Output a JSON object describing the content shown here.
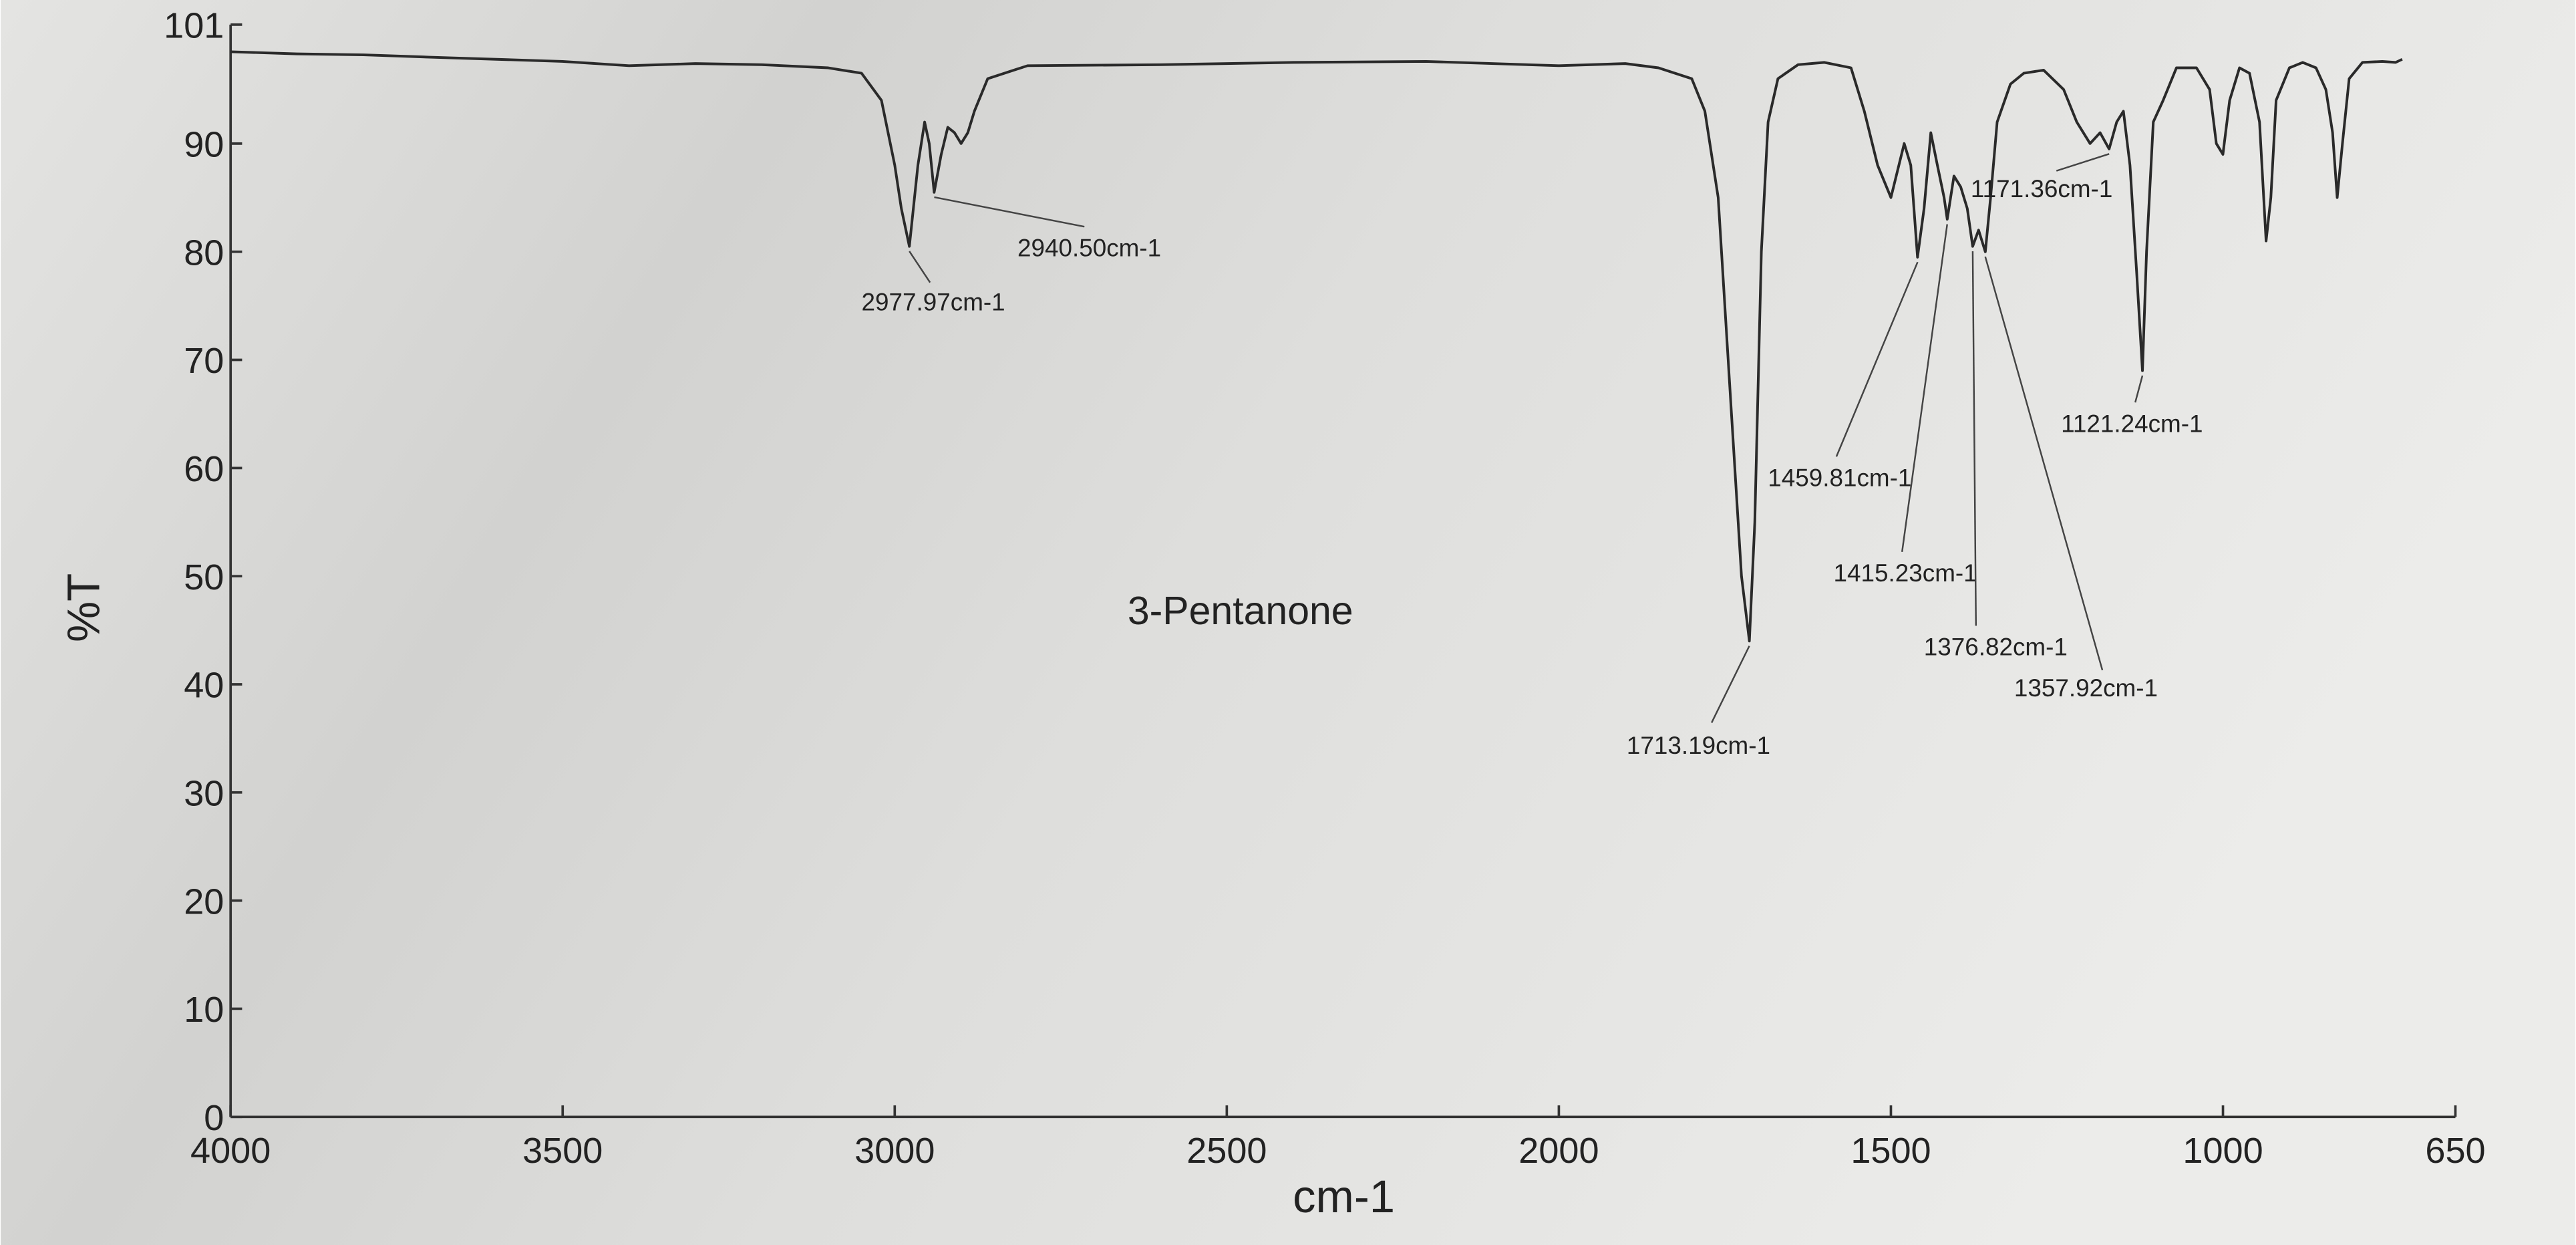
{
  "chart_data": {
    "type": "line",
    "title": "3-Pentanone",
    "xlabel": "cm-1",
    "ylabel": "%T",
    "xlim": [
      4000,
      650
    ],
    "ylim": [
      0,
      101
    ],
    "xticks": [
      4000,
      3500,
      3000,
      2500,
      2000,
      1500,
      1000,
      650
    ],
    "yticks": [
      0,
      10,
      20,
      30,
      40,
      50,
      60,
      70,
      80,
      90,
      101
    ],
    "color": "#2a2a2a",
    "x": [
      4000,
      3900,
      3800,
      3700,
      3600,
      3500,
      3400,
      3300,
      3200,
      3100,
      3050,
      3020,
      3000,
      2990,
      2977.97,
      2965,
      2955,
      2948,
      2940.5,
      2930,
      2920,
      2910,
      2900,
      2890,
      2880,
      2860,
      2800,
      2600,
      2400,
      2200,
      2000,
      1900,
      1850,
      1800,
      1780,
      1760,
      1740,
      1725,
      1713.19,
      1705,
      1695,
      1685,
      1670,
      1640,
      1600,
      1560,
      1540,
      1520,
      1500,
      1480,
      1470,
      1459.81,
      1450,
      1440,
      1430,
      1420,
      1415.23,
      1405,
      1395,
      1385,
      1376.82,
      1368,
      1357.92,
      1350,
      1340,
      1320,
      1300,
      1270,
      1240,
      1220,
      1200,
      1185,
      1171.36,
      1160,
      1150,
      1140,
      1130,
      1121.24,
      1115,
      1105,
      1090,
      1070,
      1040,
      1020,
      1010,
      1000,
      990,
      975,
      960,
      945,
      935,
      928,
      920,
      900,
      880,
      860,
      845,
      835,
      828,
      820,
      810,
      790,
      760,
      740,
      730
    ],
    "values": [
      98.5,
      98.3,
      98.2,
      98.0,
      97.8,
      97.6,
      97.2,
      97.4,
      97.3,
      97.0,
      96.5,
      94,
      88,
      84,
      80.5,
      88,
      92,
      90,
      85.5,
      89,
      91.5,
      91,
      90,
      91,
      93,
      96,
      97.2,
      97.3,
      97.5,
      97.6,
      97.2,
      97.4,
      97,
      96,
      93,
      85,
      65,
      50,
      44,
      55,
      80,
      92,
      96,
      97.3,
      97.5,
      97,
      93,
      88,
      85,
      90,
      88,
      79.5,
      84,
      91,
      88,
      85,
      83,
      87,
      86,
      84,
      80.5,
      82,
      80,
      85,
      92,
      95.5,
      96.5,
      96.8,
      95,
      92,
      90,
      91,
      89.5,
      92,
      93,
      88,
      78,
      69,
      80,
      92,
      94,
      97,
      97,
      95,
      90,
      89,
      94,
      97,
      96.5,
      92,
      81,
      85,
      94,
      97,
      97.5,
      97,
      95,
      91,
      85,
      90,
      96,
      97.5,
      97.6,
      97.5,
      97.8
    ],
    "annotations": [
      {
        "text": "2977.97cm-1",
        "x": 2977.97,
        "y": 80.5
      },
      {
        "text": "2940.50cm-1",
        "x": 2940.5,
        "y": 85.5
      },
      {
        "text": "1713.19cm-1",
        "x": 1713.19,
        "y": 44
      },
      {
        "text": "1459.81cm-1",
        "x": 1459.81,
        "y": 79.5
      },
      {
        "text": "1415.23cm-1",
        "x": 1415.23,
        "y": 83
      },
      {
        "text": "1376.82cm-1",
        "x": 1376.82,
        "y": 80.5
      },
      {
        "text": "1357.92cm-1",
        "x": 1357.92,
        "y": 80
      },
      {
        "text": "1171.36cm-1",
        "x": 1171.36,
        "y": 89.5
      },
      {
        "text": "1121.24cm-1",
        "x": 1121.24,
        "y": 69
      }
    ]
  }
}
